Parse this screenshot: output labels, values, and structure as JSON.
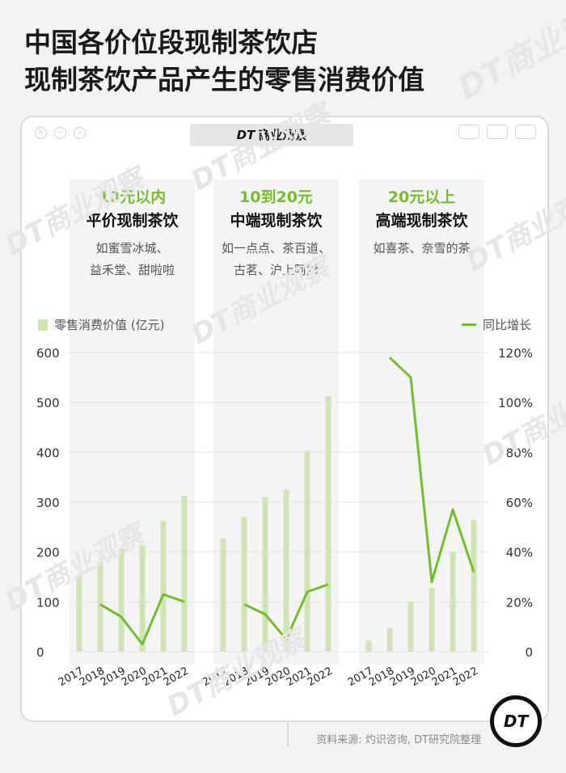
{
  "title_lines": [
    "中国各价位段现制茶饮店",
    "现制茶饮产品产生的零售消费价值"
  ],
  "watermark": "DT商业观察",
  "window": {
    "brand_mark": "DT",
    "brand_name": "商业观察"
  },
  "tiers": [
    {
      "price": "10元以内",
      "name": "平价现制茶饮",
      "brands_line1": "如蜜雪冰城、",
      "brands_line2": "益禾堂、甜啦啦"
    },
    {
      "price": "10到20元",
      "name": "中端现制茶饮",
      "brands_line1": "如一点点、茶百道、",
      "brands_line2": "古茗、沪上阿姨"
    },
    {
      "price": "20元以上",
      "name": "高端现制茶饮",
      "brands_line1": "如喜茶、奈雪的茶",
      "brands_line2": ""
    }
  ],
  "legend": {
    "bar_label": "零售消费价值 (亿元)",
    "line_label": "同比增长"
  },
  "source": "资料来源: 灼识咨询, DT研究院整理",
  "logo": "DT",
  "colors": {
    "bar": "#cfe4b3",
    "line": "#76bd2d",
    "grid": "#e4e4e4",
    "column_bg": "#f4f4f4"
  },
  "chart_data": {
    "type": "bar",
    "categories": [
      "2017",
      "2018",
      "2019",
      "2020",
      "2021",
      "2022"
    ],
    "groups": [
      "平价现制茶饮",
      "中端现制茶饮",
      "高端现制茶饮"
    ],
    "left_ticks": [
      "600",
      "500",
      "400",
      "300",
      "200",
      "100",
      "0"
    ],
    "right_ticks": [
      "120%",
      "100%",
      "80%",
      "60%",
      "40%",
      "20%",
      "0"
    ],
    "ylim_left": [
      0,
      600
    ],
    "ylim_right": [
      0,
      1.2
    ],
    "series": [
      {
        "group": "平价现制茶饮",
        "bars": [
          152,
          181,
          207,
          213,
          262,
          313
        ],
        "growth": [
          null,
          0.19,
          0.14,
          0.03,
          0.23,
          0.2
        ]
      },
      {
        "group": "中端现制茶饮",
        "bars": [
          227,
          270,
          310,
          325,
          403,
          512
        ],
        "growth": [
          null,
          0.19,
          0.15,
          0.05,
          0.24,
          0.27
        ]
      },
      {
        "group": "高端现制茶饮",
        "bars": [
          22,
          48,
          100,
          128,
          200,
          264
        ],
        "growth": [
          null,
          1.18,
          1.1,
          0.28,
          0.57,
          0.32
        ]
      }
    ]
  }
}
